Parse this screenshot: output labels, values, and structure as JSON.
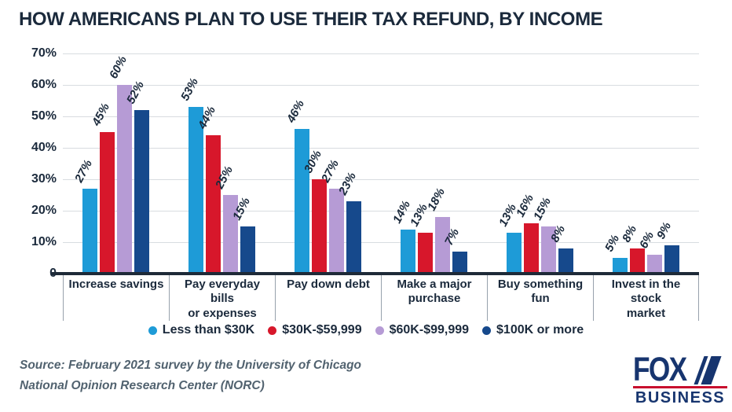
{
  "title": "HOW AMERICANS PLAN TO USE THEIR TAX REFUND, BY INCOME",
  "chart_data": {
    "type": "bar",
    "title": "HOW AMERICANS PLAN TO USE THEIR TAX REFUND, BY INCOME",
    "categories": [
      "Increase savings",
      "Pay everyday bills or expenses",
      "Pay down debt",
      "Make a major purchase",
      "Buy something fun",
      "Invest in the stock market"
    ],
    "category_label_lines": [
      [
        "Increase savings"
      ],
      [
        "Pay everyday bills",
        "or expenses"
      ],
      [
        "Pay down debt"
      ],
      [
        "Make a major",
        "purchase"
      ],
      [
        "Buy something",
        "fun"
      ],
      [
        "Invest in the stock",
        "market"
      ]
    ],
    "series": [
      {
        "name": "Less than $30K",
        "color": "#1E9BD7",
        "values": [
          27,
          53,
          46,
          14,
          13,
          5
        ]
      },
      {
        "name": "$30K-$59,999",
        "color": "#D7172B",
        "values": [
          45,
          44,
          30,
          13,
          16,
          8
        ]
      },
      {
        "name": "$60K-$99,999",
        "color": "#B69BD5",
        "values": [
          60,
          25,
          27,
          18,
          15,
          6
        ]
      },
      {
        "name": "$100K or more",
        "color": "#16498C",
        "values": [
          52,
          15,
          23,
          7,
          8,
          9
        ]
      }
    ],
    "xlabel": "",
    "ylabel": "",
    "ylim": [
      0,
      70
    ],
    "yticks": [
      {
        "value": 0,
        "label": "0"
      },
      {
        "value": 10,
        "label": "10%"
      },
      {
        "value": 20,
        "label": "20%"
      },
      {
        "value": 30,
        "label": "30%"
      },
      {
        "value": 40,
        "label": "40%"
      },
      {
        "value": 50,
        "label": "50%"
      },
      {
        "value": 60,
        "label": "60%"
      },
      {
        "value": 70,
        "label": "70%"
      }
    ],
    "grid": true,
    "legend_position": "bottom",
    "value_label_style": "rotated italic percent above bar"
  },
  "source": {
    "line1": "Source: February 2021 survey by the University of Chicago",
    "line2": "National Opinion Research Center (NORC)"
  },
  "logo": {
    "brand": "FOX",
    "sub": "BUSINESS"
  },
  "colors": {
    "navy_text": "#1B2A3C",
    "grid": "#D8DCE0",
    "baseline": "#1E2A38",
    "separator": "#97A1AC",
    "source_text": "#51626F",
    "logo_navy": "#17356F",
    "logo_red": "#C8102E"
  }
}
